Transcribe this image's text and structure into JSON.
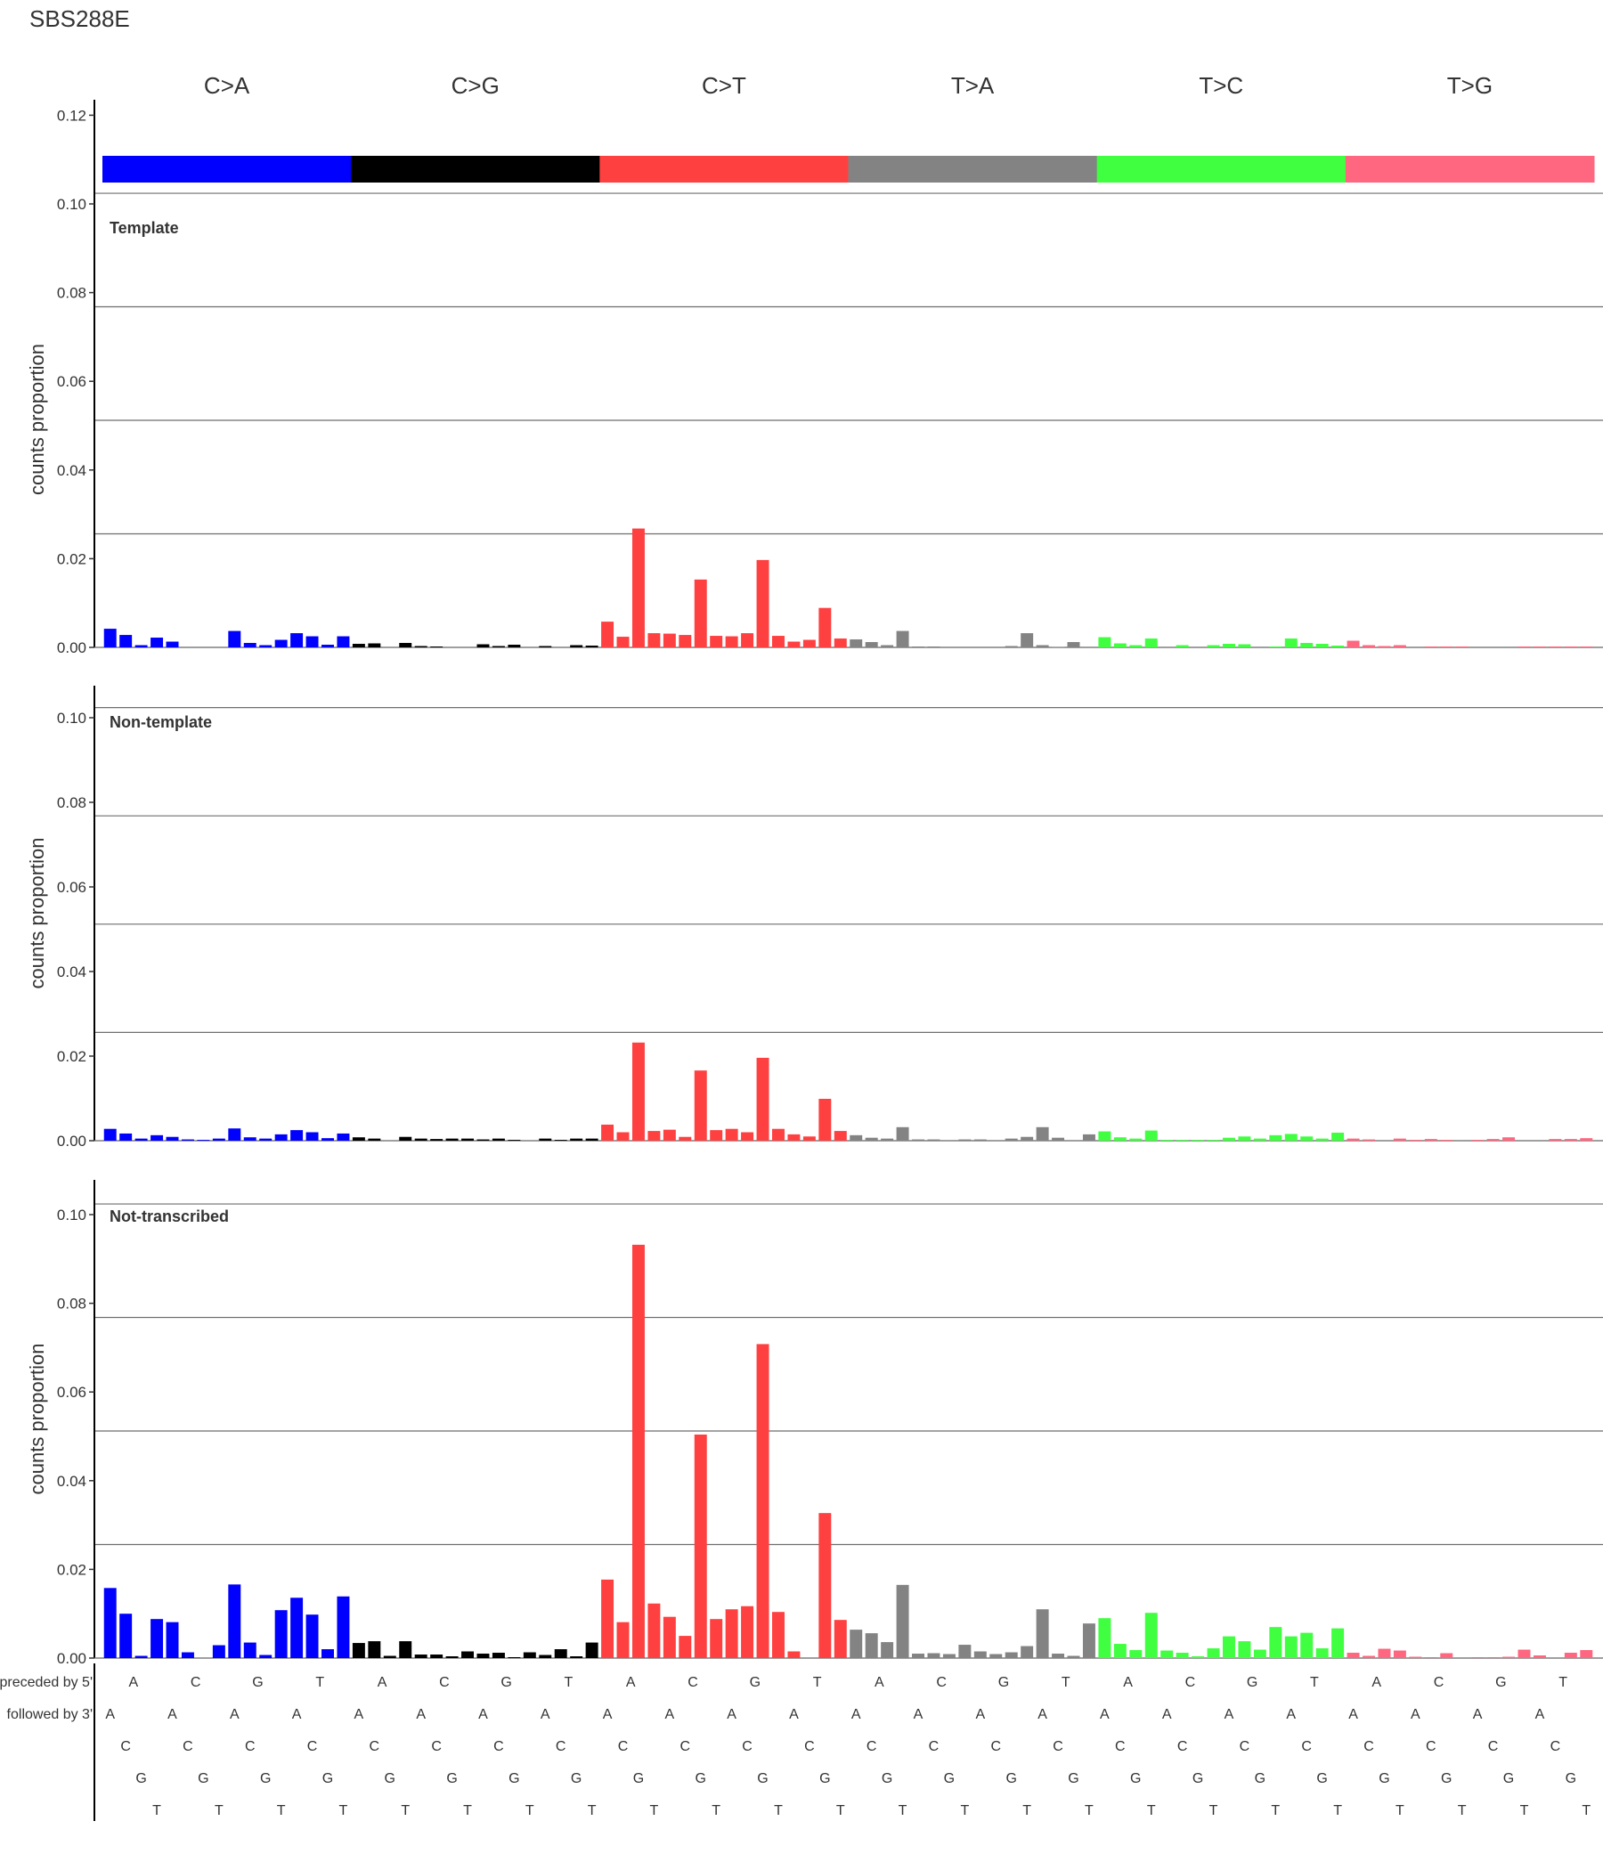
{
  "title": "SBS288E",
  "chart_data": {
    "type": "bar",
    "y_label": "counts proportion",
    "y_ticks": [
      "0.00",
      "0.02",
      "0.04",
      "0.06",
      "0.08",
      "0.10",
      "0.12"
    ],
    "mutation_classes": [
      {
        "label": "C>A",
        "color": "#0000ff"
      },
      {
        "label": "C>G",
        "color": "#000000"
      },
      {
        "label": "C>T",
        "color": "#ff4040"
      },
      {
        "label": "T>A",
        "color": "#838383"
      },
      {
        "label": "T>C",
        "color": "#40ff40"
      },
      {
        "label": "T>G",
        "color": "#ff667f"
      }
    ],
    "context_row_labels": {
      "preceded": "preceded by 5'",
      "followed": "followed by 3'"
    },
    "bases": [
      "A",
      "C",
      "G",
      "T"
    ],
    "panels": [
      {
        "name": "Template",
        "ylim": [
          0,
          0.1
        ],
        "values": [
          0.0042,
          0.0028,
          0.0005,
          0.0022,
          0.0013,
          0.0,
          0.0,
          0.0,
          0.0037,
          0.001,
          0.0005,
          0.0017,
          0.0032,
          0.0025,
          0.0006,
          0.0025,
          0.0008,
          0.0009,
          0.0,
          0.001,
          0.0003,
          0.0002,
          0.0,
          0.0,
          0.0007,
          0.0003,
          0.0006,
          0.0,
          0.0003,
          0.0,
          0.0005,
          0.0004,
          0.0058,
          0.0024,
          0.0268,
          0.0032,
          0.0031,
          0.0028,
          0.0153,
          0.0026,
          0.0025,
          0.0032,
          0.0197,
          0.0026,
          0.0013,
          0.0017,
          0.0089,
          0.002,
          0.0018,
          0.0012,
          0.0005,
          0.0037,
          0.0002,
          0.0002,
          0.0,
          0.0,
          0.0,
          0.0,
          0.0003,
          0.0032,
          0.0005,
          0.0001,
          0.0012,
          0.0,
          0.0023,
          0.0009,
          0.0005,
          0.002,
          0.0,
          0.0005,
          0.0,
          0.0005,
          0.0008,
          0.0007,
          0.0,
          0.0002,
          0.002,
          0.001,
          0.0008,
          0.0004,
          0.0015,
          0.0005,
          0.0003,
          0.0005,
          0.0,
          0.0002,
          0.0002,
          0.0002,
          0.0,
          0.0,
          0.0,
          0.0002,
          0.0002,
          0.0002,
          0.0002,
          0.0002
        ]
      },
      {
        "name": "Non-template",
        "ylim": [
          0,
          0.1
        ],
        "values": [
          0.0028,
          0.0017,
          0.0005,
          0.0013,
          0.0009,
          0.0003,
          0.0002,
          0.0005,
          0.0029,
          0.0008,
          0.0005,
          0.0015,
          0.0025,
          0.002,
          0.0006,
          0.0017,
          0.0008,
          0.0005,
          0.0,
          0.0009,
          0.0005,
          0.0004,
          0.0005,
          0.0005,
          0.0003,
          0.0005,
          0.0002,
          0.0,
          0.0005,
          0.0002,
          0.0005,
          0.0005,
          0.0038,
          0.002,
          0.0232,
          0.0023,
          0.0026,
          0.0009,
          0.0166,
          0.0025,
          0.0028,
          0.002,
          0.0196,
          0.0028,
          0.0015,
          0.001,
          0.0099,
          0.0023,
          0.0013,
          0.0007,
          0.0005,
          0.0032,
          0.0003,
          0.0003,
          0.0,
          0.0003,
          0.0003,
          0.0,
          0.0005,
          0.0009,
          0.0032,
          0.0007,
          0.0,
          0.0015,
          0.0022,
          0.0008,
          0.0005,
          0.0024,
          0.0002,
          0.0002,
          0.0002,
          0.0002,
          0.0007,
          0.001,
          0.0005,
          0.0013,
          0.0016,
          0.001,
          0.0005,
          0.0019,
          0.0005,
          0.0003,
          0.0,
          0.0005,
          0.0002,
          0.0004,
          0.0002,
          0.0,
          0.0002,
          0.0004,
          0.0008,
          0.0,
          0.0,
          0.0004,
          0.0004,
          0.0006
        ]
      },
      {
        "name": "Not-transcribed",
        "ylim": [
          0,
          0.1
        ],
        "values": [
          0.0158,
          0.01,
          0.0005,
          0.0088,
          0.0081,
          0.0013,
          0.0,
          0.0029,
          0.0166,
          0.0035,
          0.0007,
          0.0108,
          0.0136,
          0.0098,
          0.002,
          0.0139,
          0.0034,
          0.0038,
          0.0005,
          0.0038,
          0.0008,
          0.0008,
          0.0004,
          0.0015,
          0.001,
          0.0012,
          0.0002,
          0.0013,
          0.0007,
          0.002,
          0.0004,
          0.0035,
          0.0177,
          0.0081,
          0.0932,
          0.0123,
          0.0093,
          0.005,
          0.0504,
          0.0088,
          0.011,
          0.0117,
          0.0708,
          0.0104,
          0.0015,
          0.0,
          0.0327,
          0.0086,
          0.0064,
          0.0056,
          0.0036,
          0.0165,
          0.001,
          0.0011,
          0.0009,
          0.003,
          0.0015,
          0.0009,
          0.0013,
          0.0027,
          0.011,
          0.001,
          0.0005,
          0.0078,
          0.009,
          0.0032,
          0.0018,
          0.0102,
          0.0017,
          0.0012,
          0.0004,
          0.0022,
          0.0049,
          0.0038,
          0.0019,
          0.007,
          0.0049,
          0.0057,
          0.0022,
          0.0067,
          0.0012,
          0.0005,
          0.0021,
          0.0017,
          0.0003,
          0.0002,
          0.0011,
          0.0,
          0.0002,
          0.0002,
          0.0003,
          0.0019,
          0.0006,
          0.0,
          0.0012,
          0.0018
        ]
      }
    ]
  }
}
